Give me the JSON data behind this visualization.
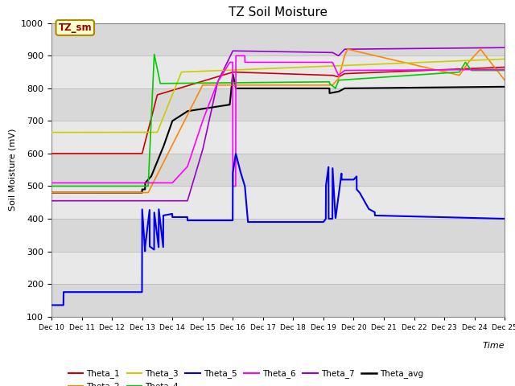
{
  "title": "TZ Soil Moisture",
  "ylabel": "Soil Moisture (mV)",
  "ylim": [
    100,
    1000
  ],
  "xlim": [
    0,
    15
  ],
  "x_tick_labels": [
    "Dec 10",
    "Dec 11",
    "Dec 12",
    "Dec 13",
    "Dec 14",
    "Dec 15",
    "Dec 16",
    "Dec 17",
    "Dec 18",
    "Dec 19",
    "Dec 20",
    "Dec 21",
    "Dec 22",
    "Dec 23",
    "Dec 24",
    "Dec 25"
  ],
  "legend_label": "TZ_sm",
  "legend_box_color": "#ffffcc",
  "legend_box_edge": "#996600",
  "bg_color": "#e8e8e8",
  "plot_bg": "#e8e8e8",
  "series": {
    "Theta_1": {
      "color": "#cc0000",
      "lw": 1.2
    },
    "Theta_2": {
      "color": "#ff8800",
      "lw": 1.2
    },
    "Theta_3": {
      "color": "#cccc00",
      "lw": 1.2
    },
    "Theta_4": {
      "color": "#00cc00",
      "lw": 1.2
    },
    "Theta_5": {
      "color": "#0000ee",
      "lw": 1.5
    },
    "Theta_6": {
      "color": "#ff00ff",
      "lw": 1.2
    },
    "Theta_7": {
      "color": "#9900cc",
      "lw": 1.2
    },
    "Theta_avg": {
      "color": "#000000",
      "lw": 1.5
    }
  },
  "yticks": [
    100,
    200,
    300,
    400,
    500,
    600,
    700,
    800,
    900,
    1000
  ],
  "grid_color": "#cccccc",
  "grid_lw": 0.8
}
